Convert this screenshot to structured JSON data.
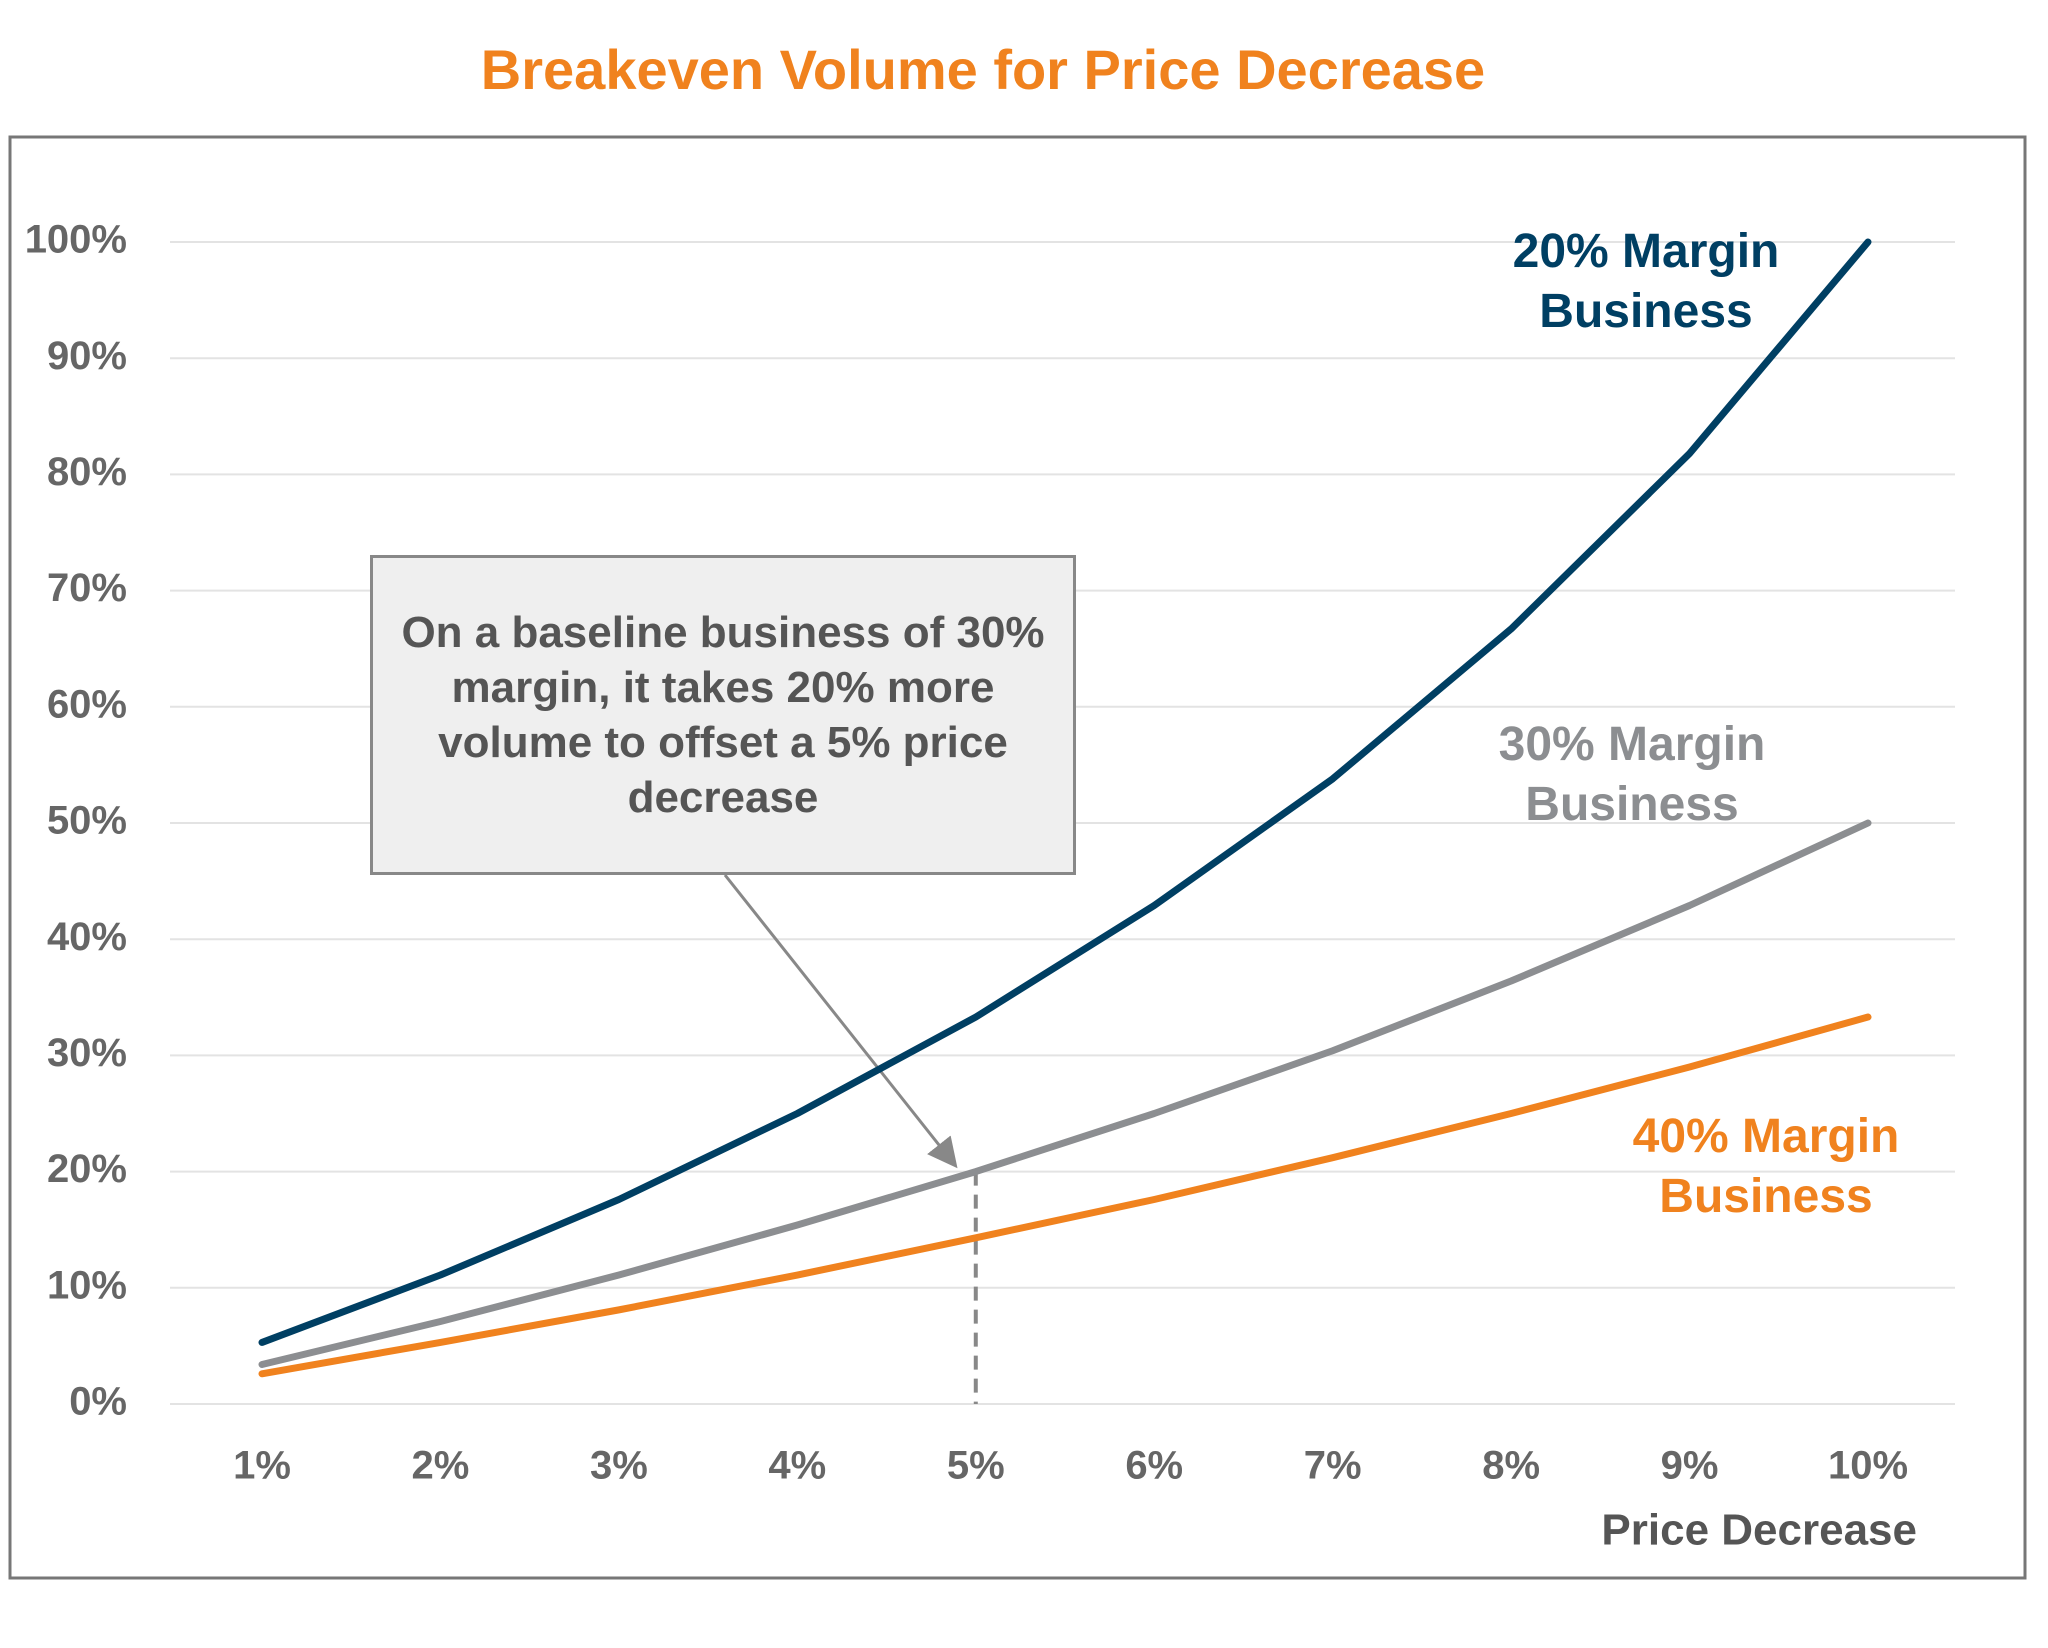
{
  "chart_data": {
    "type": "line",
    "title": "Breakeven Volume for Price Decrease",
    "x_label": "Price Decrease",
    "categories": [
      "1%",
      "2%",
      "3%",
      "4%",
      "5%",
      "6%",
      "7%",
      "8%",
      "9%",
      "10%"
    ],
    "series": [
      {
        "name": "20% Margin Business",
        "color": "#003f63",
        "values": [
          5.3,
          11.1,
          17.6,
          25,
          33.3,
          42.9,
          53.8,
          66.7,
          81.8,
          100
        ]
      },
      {
        "name": "30% Margin Business",
        "color": "#8c8e91",
        "values": [
          3.4,
          7.1,
          11.1,
          15.4,
          20,
          25,
          30.4,
          36.4,
          42.9,
          50
        ]
      },
      {
        "name": "40% Margin Business",
        "color": "#f0821e",
        "values": [
          2.6,
          5.3,
          8.1,
          11.1,
          14.3,
          17.6,
          21.2,
          25,
          29,
          33.3
        ]
      }
    ],
    "ylim": [
      0,
      100
    ],
    "yticks": [
      {
        "value": 0,
        "label": "0%"
      },
      {
        "value": 10,
        "label": "10%"
      },
      {
        "value": 20,
        "label": "20%"
      },
      {
        "value": 30,
        "label": "30%"
      },
      {
        "value": 40,
        "label": "40%"
      },
      {
        "value": 50,
        "label": "50%"
      },
      {
        "value": 60,
        "label": "60%"
      },
      {
        "value": 70,
        "label": "70%"
      },
      {
        "value": 80,
        "label": "80%"
      },
      {
        "value": 90,
        "label": "90%"
      },
      {
        "value": 100,
        "label": "100%"
      }
    ],
    "grid": true,
    "annotation": {
      "text": "On a baseline business of 30% margin, it takes 20% more volume to offset a 5% price decrease",
      "x": "5%",
      "y": 20
    }
  }
}
